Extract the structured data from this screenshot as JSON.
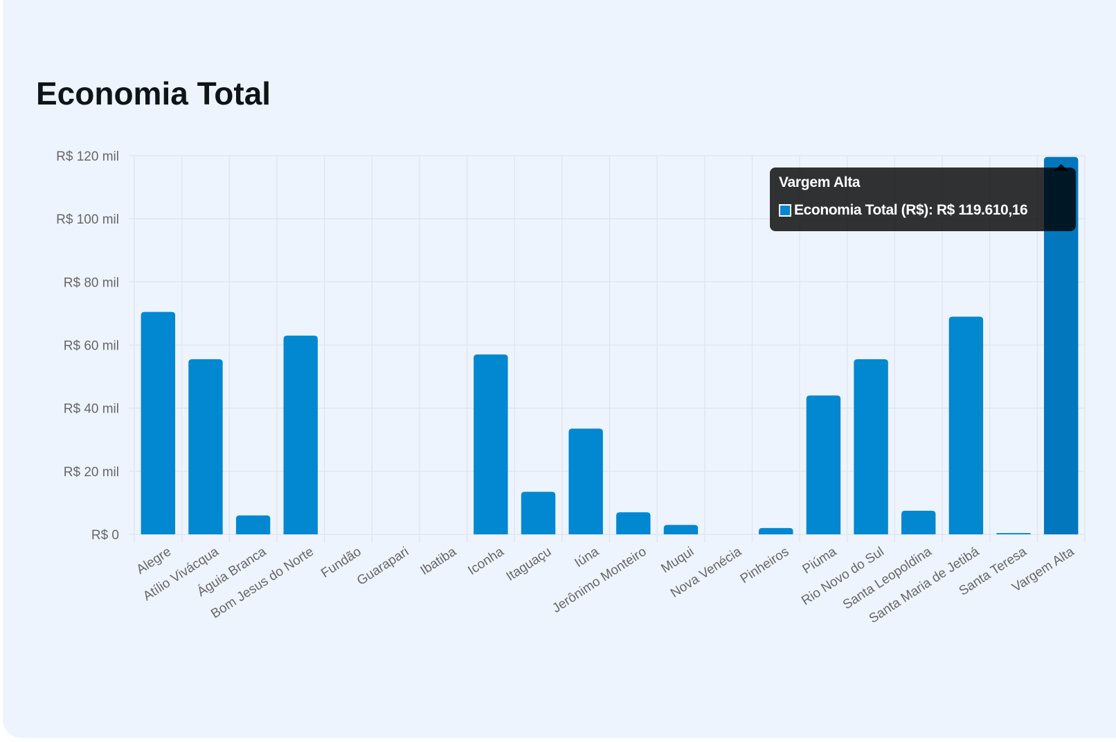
{
  "colors": {
    "card_background": "#eef4fe",
    "bar": "#0288d1",
    "bar_active": "#0277bd",
    "grid": "#dfe4ee",
    "axis_text": "#666666",
    "title": "#0f1419",
    "tooltip_background": "#000000"
  },
  "page": {
    "title": "Economia Total"
  },
  "tooltip": {
    "title": "Vargem Alta",
    "label": "Economia Total (R$): R$ 119.610,16"
  },
  "chart_data": {
    "type": "bar",
    "title": "Economia Total",
    "xlabel": "",
    "ylabel": "",
    "ylim": [
      0,
      120000
    ],
    "grid": true,
    "y_ticks": [
      0,
      20000,
      40000,
      60000,
      80000,
      100000,
      120000
    ],
    "y_tick_labels": [
      "R$ 0",
      "R$ 20 mil",
      "R$ 40 mil",
      "R$ 60 mil",
      "R$ 80 mil",
      "R$ 100 mil",
      "R$ 120 mil"
    ],
    "categories": [
      "Alegre",
      "Atílio Vivácqua",
      "Águia Branca",
      "Bom Jesus do Norte",
      "Fundão",
      "Guarapari",
      "Ibatiba",
      "Iconha",
      "Itaguaçu",
      "Iúna",
      "Jerônimo Monteiro",
      "Muqui",
      "Nova Venécia",
      "Pinheiros",
      "Piúma",
      "Rio Novo do Sul",
      "Santa Leopoldina",
      "Santa Maria de Jetibá",
      "Santa Teresa",
      "Vargem Alta"
    ],
    "series": [
      {
        "name": "Economia Total (R$)",
        "values": [
          70500,
          55500,
          6000,
          63000,
          0,
          0,
          0,
          57000,
          13500,
          33500,
          7000,
          3000,
          0,
          2000,
          44000,
          55500,
          7500,
          69000,
          400,
          119610.16
        ]
      }
    ],
    "active_category": "Vargem Alta"
  }
}
